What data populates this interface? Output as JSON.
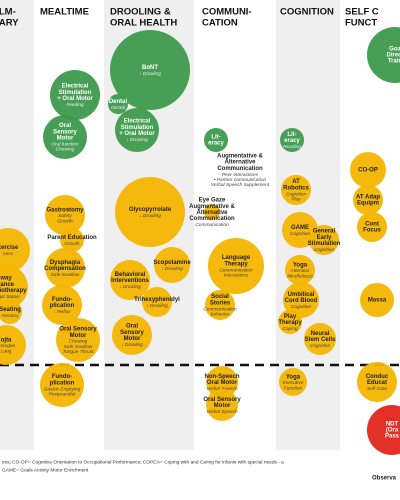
{
  "columns": [
    {
      "header": [
        "ULM-",
        "NARY"
      ],
      "bubbles": [
        {
          "title": [
            "xercise"
          ],
          "sub": [
            "ness"
          ]
        },
        {
          "title": [
            "way",
            "rance",
            "physiotherapy"
          ],
          "sub": [
            "Adapt Status"
          ]
        },
        {
          "title": [
            "Seating"
          ],
          "sub": [
            "mentary"
          ]
        },
        {
          "title": [
            "ojta"
          ],
          "sub": [
            "spirogen",
            "Lung"
          ]
        }
      ]
    },
    {
      "header": [
        "MEALTIME"
      ],
      "bubbles": [
        {
          "title": [
            "Electrical",
            "Stimulation",
            "+ Oral Motor"
          ],
          "sub": [
            "Feeding"
          ]
        },
        {
          "title": [
            "Oral",
            "Sensory",
            "Motor"
          ],
          "sub": [
            "Oral function",
            "Chewing"
          ]
        },
        {
          "title": [
            "Gastrostomy"
          ],
          "sub": [
            "Safety",
            "Growth"
          ]
        },
        {
          "title": [
            "Parent Education"
          ],
          "sub": [
            "Growth"
          ]
        },
        {
          "title": [
            "Dysphagia",
            "Compensation"
          ],
          "sub": [
            "Safe Swallow"
          ]
        },
        {
          "title": [
            "Fundo-",
            "plication"
          ],
          "sub": [
            "↓ Reflux"
          ]
        },
        {
          "title": [
            "Oral Sensory",
            "Motor"
          ],
          "sub": [
            "Chewing",
            "Safe Swallow",
            "Tongue Thrust"
          ]
        },
        {
          "title": [
            "Fundo-",
            "plication"
          ],
          "sub": [
            "Gastric Emptying",
            "Postprandial"
          ]
        }
      ]
    },
    {
      "header": [
        "DROOLING &",
        "ORAL HEALTH"
      ],
      "bubbles": [
        {
          "title": [
            "BoNT"
          ],
          "sub": [
            "↓ Drooling"
          ]
        },
        {
          "title": [
            "Dental"
          ],
          "sub": [
            "Dental"
          ]
        },
        {
          "title": [
            "Electrical",
            "Stimulation",
            "+ Oral Motor"
          ],
          "sub": [
            "↓ Drooling"
          ]
        },
        {
          "title": [
            "Glycopyrrolate"
          ],
          "sub": [
            "↓ Drooling"
          ]
        },
        {
          "title": [
            "Scopolamine"
          ],
          "sub": [
            "↓ Drooling"
          ]
        },
        {
          "title": [
            "Behavioral",
            "Interventions"
          ],
          "sub": [
            "↓ Drooling"
          ]
        },
        {
          "title": [
            "Trihexyphenidyl"
          ],
          "sub": [
            "↓ Drooling"
          ]
        },
        {
          "title": [
            "Oral",
            "Sensory",
            "Motor"
          ],
          "sub": [
            "↓ Drooling"
          ]
        }
      ]
    },
    {
      "header": [
        "COMMUNI-",
        "CATION"
      ],
      "bubbles": [
        {
          "title": [
            "Lit-",
            "eracy"
          ],
          "sub": []
        },
        {
          "title": [
            "Augmentative &",
            "Alternative",
            "Communication"
          ],
          "sub": [
            "Peer Interactions",
            "• Partner communication",
            "Verbal Speech Supplement"
          ]
        },
        {
          "title": [
            "Eye Gaze",
            "Augmentative &",
            "Alternative",
            "Communication"
          ],
          "sub": [
            "Communication"
          ]
        },
        {
          "title": [
            "Language",
            "Therapy"
          ],
          "sub": [
            "Communication",
            "interactions"
          ]
        },
        {
          "title": [
            "Social",
            "Stories"
          ],
          "sub": [
            "Communication",
            "behavior"
          ]
        },
        {
          "title": [
            "Non-Speech",
            "Oral Motor"
          ],
          "sub": [
            "Verbal Speech"
          ]
        },
        {
          "title": [
            "Oral Sensory",
            "Motor"
          ],
          "sub": [
            "Verbal Speech"
          ]
        }
      ]
    },
    {
      "header": [
        "COGNITION"
      ],
      "bubbles": [
        {
          "title": [
            "Lit-",
            "eracy"
          ],
          "sub": [
            "Reading"
          ]
        },
        {
          "title": [
            "AT",
            "Robotics"
          ],
          "sub": [
            "Cognition",
            "Play"
          ]
        },
        {
          "title": [
            "GAME"
          ],
          "sub": [
            "Cognition"
          ]
        },
        {
          "title": [
            "General",
            "Early",
            "Stimulation"
          ],
          "sub": [
            "Cognition"
          ]
        },
        {
          "title": [
            "Yoga"
          ],
          "sub": [
            "Attention",
            "Mindfulness"
          ]
        },
        {
          "title": [
            "Umbilical",
            "Cord Blood"
          ],
          "sub": [
            "Cognition"
          ]
        },
        {
          "title": [
            "Play",
            "Therapy"
          ],
          "sub": [
            "Coping"
          ]
        },
        {
          "title": [
            "Neural",
            "Stem Cells"
          ],
          "sub": [
            "Cognition"
          ]
        },
        {
          "title": [
            "Yoga"
          ],
          "sub": [
            "Executive",
            "Function"
          ]
        }
      ]
    },
    {
      "header": [
        "SELF C",
        "FUNCT"
      ],
      "bubbles": [
        {
          "title": [
            "Goa",
            "Direct",
            "Train"
          ],
          "sub": []
        },
        {
          "title": [
            "CO-OP"
          ],
          "sub": []
        },
        {
          "title": [
            "AT Adap",
            "Equipm"
          ],
          "sub": []
        },
        {
          "title": [
            "Cont",
            "Focus"
          ],
          "sub": []
        },
        {
          "title": [
            "Massa"
          ],
          "sub": []
        },
        {
          "title": [
            "Conduc",
            "Educat"
          ],
          "sub": [
            "Self Care"
          ]
        },
        {
          "title": [
            "NDT",
            "(Ora",
            "Pass"
          ],
          "sub": []
        }
      ]
    }
  ],
  "footer": [
    "ess; CO-OP= Cognitive Orientation to Occupational Performance; COPCA= Coping with and Caring for infants with special needs - a",
    "GAME= Goals Activity Motor Enrichment"
  ],
  "observation": "Observa"
}
